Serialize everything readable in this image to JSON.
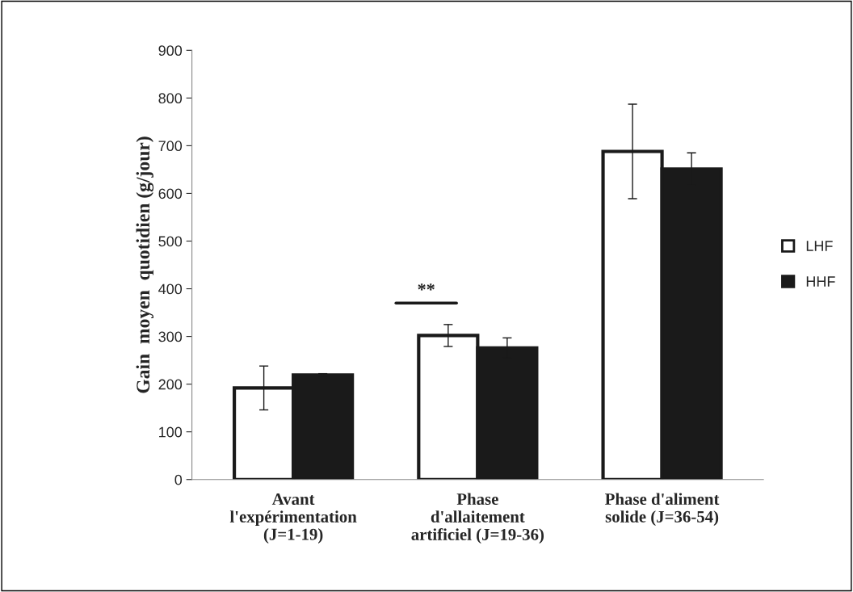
{
  "chart_data": {
    "type": "bar",
    "ylabel": "Gain  moyen  quotidien (g/jour)",
    "categories": [
      "Avant\nl'expérimentation\n(J=1-19)",
      "Phase\nd'allaitement\nartificiel (J=19-36)",
      "Phase d'aliment\nsolide (J=36-54)"
    ],
    "series": [
      {
        "name": "LHF",
        "color": "#ffffff",
        "values": [
          192,
          302,
          688
        ],
        "errors": [
          46,
          23,
          99
        ]
      },
      {
        "name": "HHF",
        "color": "#1a1a1a",
        "values": [
          219,
          276,
          651
        ],
        "errors": [
          3,
          21,
          34
        ]
      }
    ],
    "ylim": [
      0,
      900
    ],
    "yticks": [
      0,
      100,
      200,
      300,
      400,
      500,
      600,
      700,
      800,
      900
    ],
    "annotations": [
      "**"
    ],
    "grid": false,
    "legend": "right"
  }
}
